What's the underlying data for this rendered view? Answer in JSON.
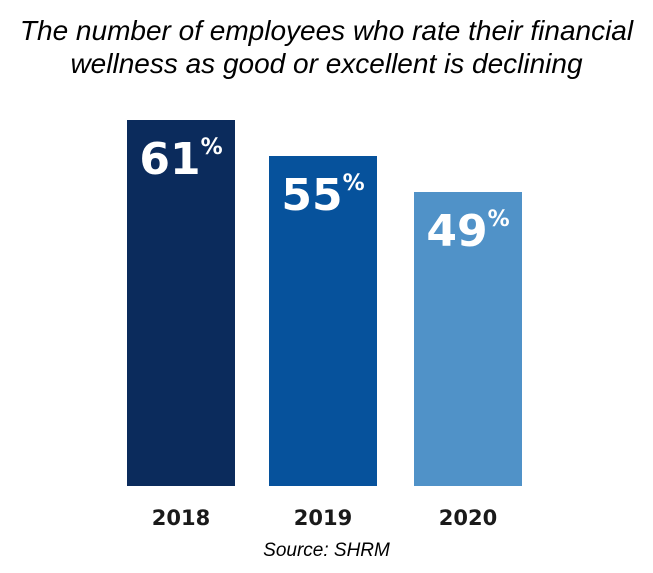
{
  "title_lines": [
    "The number of employees who rate their financial",
    "wellness as good or excellent is declining"
  ],
  "source": "Source: SHRM",
  "chart_data": {
    "type": "bar",
    "title": "The number of employees who rate their financial wellness as good or excellent is declining",
    "categories": [
      "2018",
      "2019",
      "2020"
    ],
    "values": [
      61,
      55,
      49
    ],
    "unit": "%",
    "colors": [
      "#0b2b5c",
      "#06529c",
      "#5092c8"
    ],
    "label_color": "#ffffff",
    "category_label_color": "#1a1a1a",
    "grid": false,
    "legend": "none"
  }
}
